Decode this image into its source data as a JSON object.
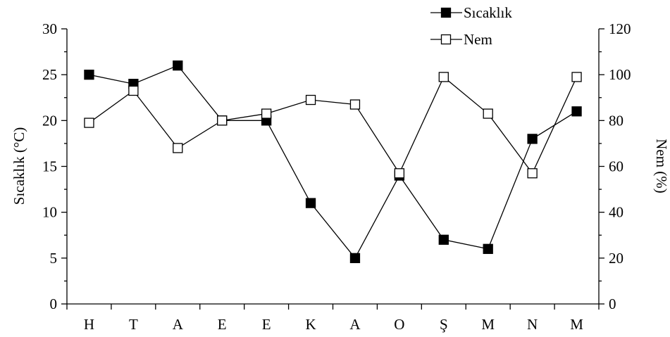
{
  "chart_data": {
    "type": "line",
    "title": "",
    "categories": [
      "H",
      "T",
      "A",
      "E",
      "E",
      "K",
      "A",
      "O",
      "Ş",
      "M",
      "N",
      "M"
    ],
    "ylabel": "Sıcaklık (°C)",
    "y2label": "Nem (%)",
    "ylim": [
      0,
      30
    ],
    "y2lim": [
      0,
      120
    ],
    "yticks": [
      0,
      5,
      10,
      15,
      20,
      25,
      30
    ],
    "y2ticks": [
      0,
      20,
      40,
      60,
      80,
      100,
      120
    ],
    "grid": false,
    "legend_position": "top-right",
    "series": [
      {
        "name": "Sıcaklık",
        "axis": "left",
        "marker": "filled-square",
        "color": "#000000",
        "values": [
          25,
          24,
          26,
          20,
          20,
          11,
          5,
          14,
          7,
          6,
          18,
          21
        ]
      },
      {
        "name": "Nem",
        "axis": "right",
        "marker": "open-square",
        "color": "#000000",
        "values": [
          79,
          93,
          68,
          80,
          83,
          89,
          87,
          57,
          99,
          83,
          57,
          99
        ]
      }
    ]
  }
}
